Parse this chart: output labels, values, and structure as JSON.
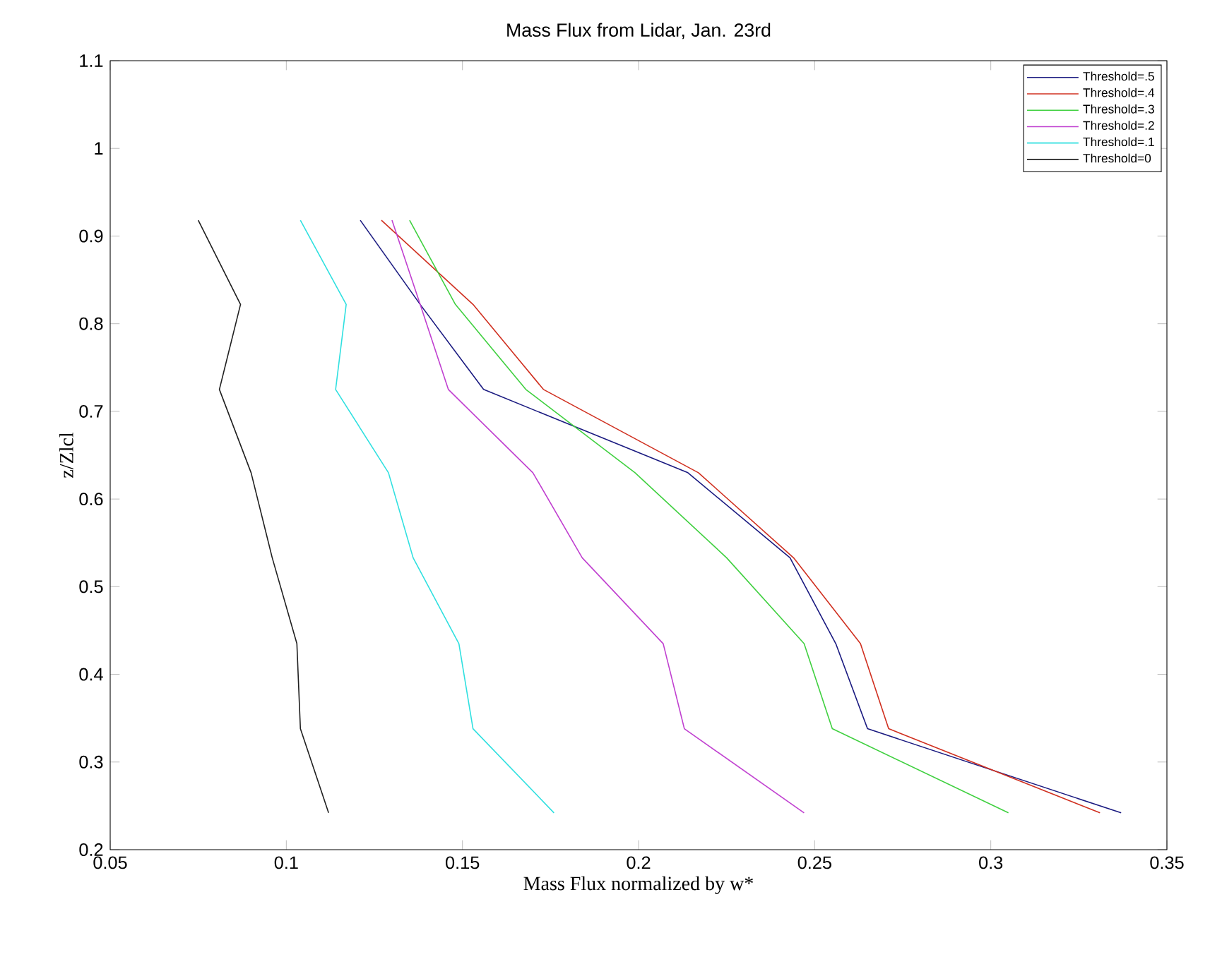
{
  "chart_data": {
    "type": "line",
    "title": "Mass Flux from Lidar, Jan. 23rd",
    "xlabel": "Mass Flux normalized by w*",
    "ylabel": "z/Zlcl",
    "xlim": [
      0.05,
      0.35
    ],
    "xticks": [
      0.05,
      0.1,
      0.15,
      0.2,
      0.25,
      0.3,
      0.35
    ],
    "ylim": [
      0.2,
      1.1
    ],
    "yticks": [
      0.2,
      0.3,
      0.4,
      0.5,
      0.6,
      0.7,
      0.8,
      0.9,
      1,
      1.1
    ],
    "legend": "top right",
    "grid": false,
    "marker": "none",
    "line_style": "solid",
    "series": [
      {
        "name": "Threshold=.5",
        "color": "#1a1a80",
        "x": [
          0.121,
          0.138,
          0.156,
          0.214,
          0.243,
          0.256,
          0.265,
          0.337
        ],
        "values": [
          0.918,
          0.822,
          0.725,
          0.63,
          0.533,
          0.435,
          0.338,
          0.242
        ]
      },
      {
        "name": "Threshold=.4",
        "color": "#d03020",
        "x": [
          0.127,
          0.153,
          0.173,
          0.217,
          0.244,
          0.263,
          0.271,
          0.331
        ],
        "values": [
          0.918,
          0.822,
          0.725,
          0.63,
          0.533,
          0.435,
          0.338,
          0.242
        ]
      },
      {
        "name": "Threshold=.3",
        "color": "#40d040",
        "x": [
          0.135,
          0.148,
          0.168,
          0.199,
          0.225,
          0.247,
          0.255,
          0.305
        ],
        "values": [
          0.918,
          0.822,
          0.725,
          0.63,
          0.533,
          0.435,
          0.338,
          0.242
        ]
      },
      {
        "name": "Threshold=.2",
        "color": "#c040d0",
        "x": [
          0.13,
          0.138,
          0.146,
          0.17,
          0.184,
          0.207,
          0.213,
          0.247
        ],
        "values": [
          0.918,
          0.822,
          0.725,
          0.63,
          0.533,
          0.435,
          0.338,
          0.242
        ]
      },
      {
        "name": "Threshold=.1",
        "color": "#30e0e0",
        "x": [
          0.104,
          0.117,
          0.114,
          0.129,
          0.136,
          0.149,
          0.153,
          0.176
        ],
        "values": [
          0.918,
          0.822,
          0.725,
          0.63,
          0.533,
          0.435,
          0.338,
          0.242
        ]
      },
      {
        "name": "Threshold=0",
        "color": "#202020",
        "x": [
          0.075,
          0.087,
          0.081,
          0.09,
          0.096,
          0.103,
          0.104,
          0.112
        ],
        "values": [
          0.918,
          0.822,
          0.725,
          0.63,
          0.533,
          0.435,
          0.338,
          0.242
        ]
      }
    ]
  }
}
